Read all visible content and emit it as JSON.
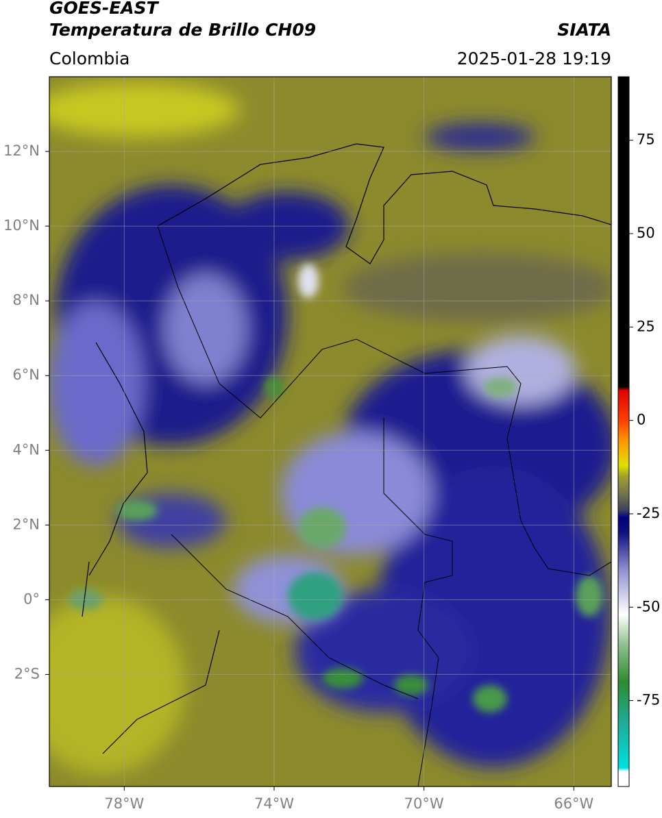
{
  "header": {
    "title": "GOES-EAST",
    "subtitle": "Temperatura de Brillo CH09",
    "source": "SIATA",
    "region": "Colombia",
    "timestamp": "2025-01-28 19:19"
  },
  "map": {
    "lon_range": [
      -80,
      -65
    ],
    "lat_range": [
      -5,
      14
    ],
    "lon_ticks": [
      {
        "value": -78,
        "label": "78°W"
      },
      {
        "value": -74,
        "label": "74°W"
      },
      {
        "value": -70,
        "label": "70°W"
      },
      {
        "value": -66,
        "label": "66°W"
      }
    ],
    "lat_ticks": [
      {
        "value": 12,
        "label": "12°N"
      },
      {
        "value": 10,
        "label": "10°N"
      },
      {
        "value": 8,
        "label": "8°N"
      },
      {
        "value": 6,
        "label": "6°N"
      },
      {
        "value": 4,
        "label": "4°N"
      },
      {
        "value": 2,
        "label": "2°N"
      },
      {
        "value": 0,
        "label": "0°"
      },
      {
        "value": -2,
        "label": "2°S"
      }
    ]
  },
  "colorbar": {
    "range": [
      -98,
      92
    ],
    "ticks": [
      75,
      50,
      25,
      0,
      -25,
      -50,
      -75
    ],
    "stops": [
      {
        "value": -98,
        "color": "#ffffff"
      },
      {
        "value": -94,
        "color": "#ffffff"
      },
      {
        "value": -93,
        "color": "#00e0e0"
      },
      {
        "value": -80,
        "color": "#20a890"
      },
      {
        "value": -70,
        "color": "#2e8b2e"
      },
      {
        "value": -60,
        "color": "#90c090"
      },
      {
        "value": -52,
        "color": "#ffffff"
      },
      {
        "value": -40,
        "color": "#9090d0"
      },
      {
        "value": -30,
        "color": "#101080"
      },
      {
        "value": -26,
        "color": "#000080"
      },
      {
        "value": -24,
        "color": "#404060"
      },
      {
        "value": -20,
        "color": "#707050"
      },
      {
        "value": -15,
        "color": "#a0a030"
      },
      {
        "value": -12,
        "color": "#e0e000"
      },
      {
        "value": -5,
        "color": "#ff9000"
      },
      {
        "value": 0,
        "color": "#ff4000"
      },
      {
        "value": 8,
        "color": "#e00000"
      },
      {
        "value": 9,
        "color": "#000000"
      },
      {
        "value": 92,
        "color": "#000000"
      }
    ]
  }
}
